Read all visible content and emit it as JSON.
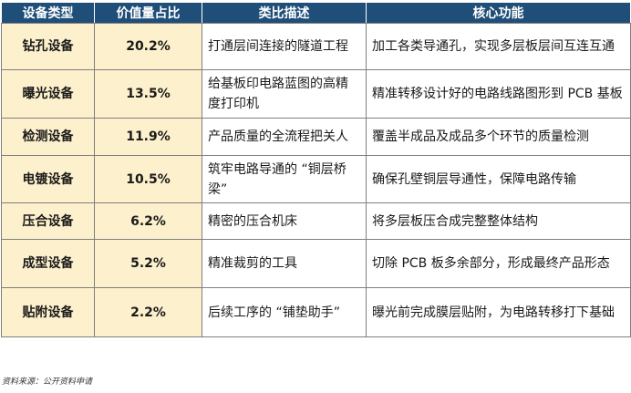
{
  "headers": [
    "设备类型",
    "价值量占比",
    "类比描述",
    "核心功能"
  ],
  "rows": [
    {
      "type": "钻孔设备",
      "share": "20.2%",
      "analogy": "打通层间连接的隧道工程",
      "function": "加工各类导通孔，实现多层板层间互连互通"
    },
    {
      "type": "曝光设备",
      "share": "13.5%",
      "analogy": "给基板印电路蓝图的高精度打印机",
      "function": "精准转移设计好的电路线路图形到 PCB 基板"
    },
    {
      "type": "检测设备",
      "share": "11.9%",
      "analogy": "产品质量的全流程把关人",
      "function": "覆盖半成品及成品多个环节的质量检测"
    },
    {
      "type": "电镀设备",
      "share": "10.5%",
      "analogy": "筑牢电路导通的 “铜层桥梁”",
      "function": "确保孔壁铜层导通性，保障电路传输"
    },
    {
      "type": "压合设备",
      "share": "6.2%",
      "analogy": "精密的压合机床",
      "function": "将多层板压合成完整整体结构"
    },
    {
      "type": "成型设备",
      "share": "5.2%",
      "analogy": "精准裁剪的工具",
      "function": "切除 PCB 板多余部分，形成最终产品形态"
    },
    {
      "type": "贴附设备",
      "share": "2.2%",
      "analogy": "后续工序的 “铺垫助手”",
      "function": "曝光前完成膜层贴附，为电路转移打下基础"
    }
  ],
  "source": "资料来源：公开资料申请",
  "colors": {
    "header_bg": "#1f4e79",
    "header_text": "#ffffff",
    "highlight_bg": "#fdf0cc",
    "border": "#7f7f7f"
  }
}
